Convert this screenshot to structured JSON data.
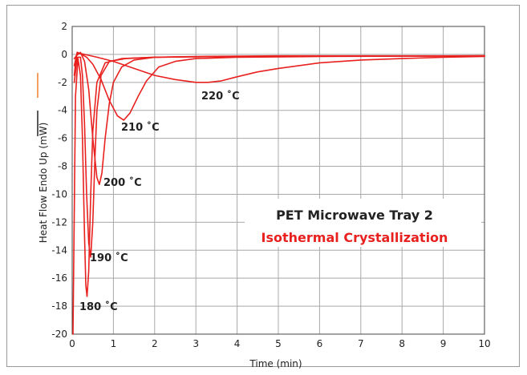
{
  "chart_data": {
    "type": "line",
    "title": "PET Microwave Tray 2",
    "subtitle": "Isothermal Crystallization",
    "xlabel": "Time (min)",
    "ylabel": "Heat Flow Endo Up (mW)",
    "xlim": [
      0,
      10
    ],
    "ylim": [
      -20,
      2
    ],
    "x_ticks": [
      "0",
      "1",
      "2",
      "3",
      "4",
      "5",
      "6",
      "7",
      "8",
      "9",
      "10"
    ],
    "y_ticks": [
      "2",
      "0",
      "-2",
      "-4",
      "-6",
      "-8",
      "-10",
      "-12",
      "-14",
      "-16",
      "-18",
      "-20"
    ],
    "grid": true,
    "line_color": "#e8211f",
    "series": [
      {
        "name": "180 °C",
        "x": [
          0.02,
          0.08,
          0.14,
          0.2,
          0.25,
          0.3,
          0.33,
          0.36,
          0.4,
          0.45,
          0.5,
          0.6,
          0.8,
          1.2,
          2.0,
          3.5,
          10.0
        ],
        "y": [
          -20,
          -3,
          -0.3,
          -1.5,
          -6,
          -13,
          -16.5,
          -17.3,
          -15.5,
          -10,
          -5.5,
          -2,
          -0.6,
          -0.3,
          -0.2,
          -0.15,
          -0.1
        ]
      },
      {
        "name": "190 °C",
        "x": [
          0.05,
          0.12,
          0.2,
          0.25,
          0.3,
          0.35,
          0.4,
          0.45,
          0.5,
          0.55,
          0.6,
          0.7,
          0.9,
          1.3,
          2.0,
          4.0,
          10.0
        ],
        "y": [
          -2.0,
          -0.2,
          -0.2,
          -1.5,
          -5,
          -10,
          -13.5,
          -14.5,
          -12,
          -7.5,
          -4,
          -1.5,
          -0.5,
          -0.3,
          -0.2,
          -0.15,
          -0.1
        ]
      },
      {
        "name": "200 °C",
        "x": [
          0.05,
          0.1,
          0.2,
          0.3,
          0.4,
          0.5,
          0.6,
          0.66,
          0.72,
          0.8,
          0.9,
          1.0,
          1.2,
          1.5,
          2.0,
          3.0,
          5.0,
          10.0
        ],
        "y": [
          -1.5,
          -0.1,
          0.15,
          -0.5,
          -2.5,
          -6,
          -8.8,
          -9.3,
          -8.5,
          -6,
          -3.5,
          -2,
          -0.9,
          -0.4,
          -0.2,
          -0.15,
          -0.1,
          -0.1
        ]
      },
      {
        "name": "210 °C",
        "x": [
          0.05,
          0.12,
          0.2,
          0.35,
          0.5,
          0.7,
          0.9,
          1.1,
          1.25,
          1.4,
          1.6,
          1.8,
          2.1,
          2.5,
          3.0,
          4.0,
          6.0,
          10.0
        ],
        "y": [
          -0.8,
          0.15,
          0.05,
          -0.2,
          -0.7,
          -1.8,
          -3.3,
          -4.4,
          -4.7,
          -4.2,
          -3,
          -1.9,
          -0.9,
          -0.5,
          -0.3,
          -0.2,
          -0.15,
          -0.1
        ]
      },
      {
        "name": "220 °C",
        "x": [
          0.05,
          0.15,
          0.3,
          0.6,
          1.0,
          1.5,
          2.0,
          2.5,
          3.0,
          3.3,
          3.6,
          4.0,
          4.5,
          5.0,
          5.5,
          6.0,
          7.0,
          8.0,
          9.0,
          10.0
        ],
        "y": [
          -0.3,
          0.1,
          0.0,
          -0.2,
          -0.5,
          -1.0,
          -1.5,
          -1.8,
          -2.0,
          -2.0,
          -1.9,
          -1.6,
          -1.25,
          -1.0,
          -0.8,
          -0.6,
          -0.4,
          -0.3,
          -0.2,
          -0.15
        ]
      }
    ],
    "annotations": [
      "180 ˚C",
      "190 ˚C",
      "200 ˚C",
      "210 ˚C",
      "220 ˚C"
    ]
  }
}
